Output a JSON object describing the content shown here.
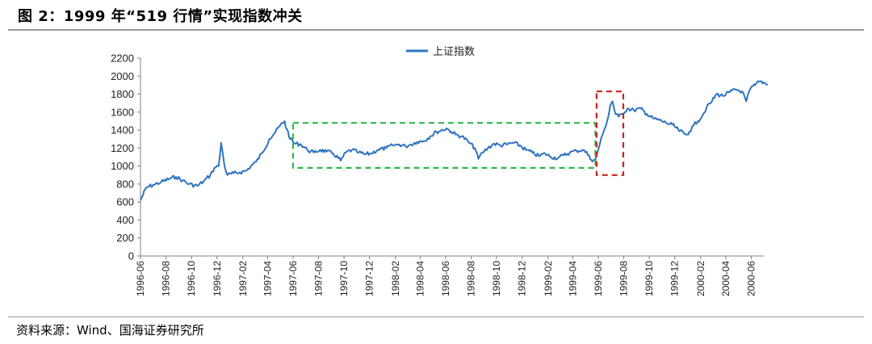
{
  "figure": {
    "title": "图 2：1999 年“519 行情”实现指数冲关",
    "source": "资料来源：Wind、国海证券研究所"
  },
  "colors": {
    "line": "#2f74c0",
    "highlight_green": "#2db84b",
    "highlight_red": "#c8231e",
    "axis": "#7f7f7f"
  },
  "chart_data": {
    "type": "line",
    "title": "",
    "xlabel": "",
    "ylabel": "",
    "ylim": [
      0,
      2200
    ],
    "yticks": [
      0,
      200,
      400,
      600,
      800,
      1000,
      1200,
      1400,
      1600,
      1800,
      2000,
      2200
    ],
    "x_range": [
      "1996-06",
      "2000-07"
    ],
    "xticks": [
      "1996-06",
      "1996-08",
      "1996-10",
      "1996-12",
      "1997-02",
      "1997-04",
      "1997-06",
      "1997-08",
      "1997-10",
      "1997-12",
      "1998-02",
      "1998-04",
      "1998-06",
      "1998-08",
      "1998-10",
      "1998-12",
      "1999-02",
      "1999-04",
      "1999-06",
      "1999-08",
      "1999-10",
      "1999-12",
      "2000-02",
      "2000-04",
      "2000-06"
    ],
    "grid": false,
    "legend": "top-center",
    "series": [
      {
        "name": "上证指数",
        "x": [
          "1996-06-01",
          "1996-06-15",
          "1996-07-01",
          "1996-07-20",
          "1996-08-10",
          "1996-08-25",
          "1996-09-10",
          "1996-09-25",
          "1996-10-15",
          "1996-10-30",
          "1996-11-15",
          "1996-11-25",
          "1996-12-05",
          "1996-12-11",
          "1996-12-16",
          "1996-12-20",
          "1996-12-26",
          "1997-01-10",
          "1997-01-25",
          "1997-02-10",
          "1997-02-20",
          "1997-03-05",
          "1997-03-20",
          "1997-04-05",
          "1997-04-20",
          "1997-05-01",
          "1997-05-12",
          "1997-05-15",
          "1997-05-20",
          "1997-05-25",
          "1997-06-05",
          "1997-06-20",
          "1997-07-05",
          "1997-07-20",
          "1997-08-05",
          "1997-08-20",
          "1997-09-05",
          "1997-09-23",
          "1997-10-05",
          "1997-10-20",
          "1997-11-05",
          "1997-11-20",
          "1997-12-05",
          "1997-12-20",
          "1998-01-10",
          "1998-01-25",
          "1998-02-10",
          "1998-02-25",
          "1998-03-10",
          "1998-03-25",
          "1998-04-10",
          "1998-04-25",
          "1998-05-10",
          "1998-05-25",
          "1998-06-03",
          "1998-06-15",
          "1998-06-25",
          "1998-07-10",
          "1998-07-25",
          "1998-08-10",
          "1998-08-18",
          "1998-08-28",
          "1998-09-10",
          "1998-09-25",
          "1998-10-10",
          "1998-10-25",
          "1998-11-10",
          "1998-11-25",
          "1998-12-10",
          "1998-12-25",
          "1999-01-10",
          "1999-01-25",
          "1999-02-08",
          "1999-02-25",
          "1999-03-10",
          "1999-03-25",
          "1999-04-10",
          "1999-04-25",
          "1999-05-10",
          "1999-05-18",
          "1999-05-25",
          "1999-06-05",
          "1999-06-15",
          "1999-06-25",
          "1999-06-30",
          "1999-07-05",
          "1999-07-12",
          "1999-07-20",
          "1999-07-28",
          "1999-08-10",
          "1999-08-25",
          "1999-09-10",
          "1999-09-25",
          "1999-10-10",
          "1999-10-25",
          "1999-11-10",
          "1999-11-25",
          "1999-12-10",
          "1999-12-27",
          "2000-01-05",
          "2000-01-15",
          "2000-01-25",
          "2000-02-05",
          "2000-02-15",
          "2000-02-28",
          "2000-03-10",
          "2000-03-25",
          "2000-04-10",
          "2000-04-25",
          "2000-05-10",
          "2000-05-20",
          "2000-05-30",
          "2000-06-10",
          "2000-06-20",
          "2000-07-01",
          "2000-07-10"
        ],
        "y": [
          620,
          760,
          790,
          820,
          860,
          880,
          840,
          800,
          780,
          830,
          900,
          980,
          1000,
          1258,
          1100,
          980,
          900,
          920,
          930,
          950,
          1000,
          1050,
          1150,
          1300,
          1380,
          1450,
          1500,
          1420,
          1380,
          1300,
          1250,
          1240,
          1180,
          1150,
          1180,
          1160,
          1140,
          1060,
          1150,
          1180,
          1150,
          1130,
          1140,
          1180,
          1200,
          1230,
          1240,
          1220,
          1240,
          1270,
          1280,
          1330,
          1380,
          1400,
          1420,
          1380,
          1350,
          1330,
          1270,
          1200,
          1080,
          1150,
          1200,
          1250,
          1230,
          1240,
          1260,
          1230,
          1180,
          1150,
          1110,
          1140,
          1100,
          1090,
          1120,
          1150,
          1170,
          1180,
          1120,
          1050,
          1070,
          1250,
          1400,
          1550,
          1680,
          1720,
          1580,
          1550,
          1580,
          1640,
          1620,
          1640,
          1580,
          1530,
          1510,
          1480,
          1460,
          1400,
          1350,
          1380,
          1450,
          1500,
          1560,
          1650,
          1720,
          1800,
          1780,
          1820,
          1850,
          1830,
          1720,
          1860,
          1900,
          1940,
          1930,
          1900
        ]
      }
    ],
    "annotations": [
      {
        "type": "rect",
        "style": "dashed",
        "color": "green",
        "x0": "1997-06-01",
        "x1": "1999-05-25",
        "y0": 980,
        "y1": 1480
      },
      {
        "type": "rect",
        "style": "dashed",
        "color": "red",
        "x0": "1999-05-28",
        "x1": "1999-07-31",
        "y0": 900,
        "y1": 1830
      }
    ]
  }
}
